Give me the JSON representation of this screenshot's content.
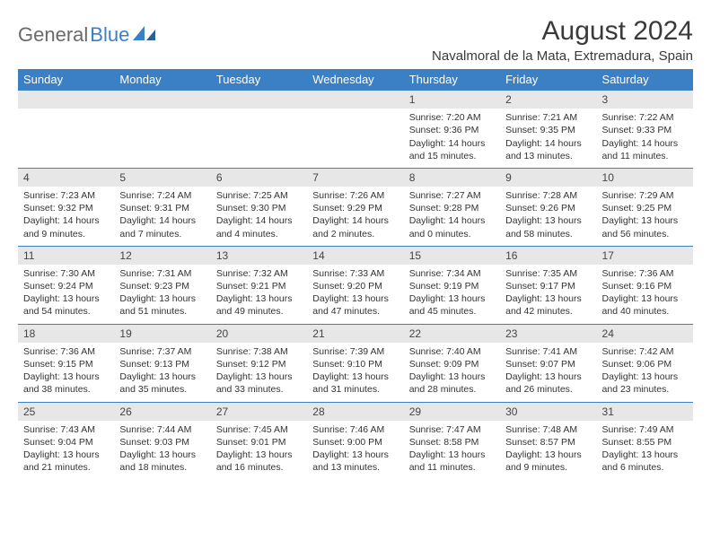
{
  "logo": {
    "text1": "General",
    "text2": "Blue"
  },
  "title": "August 2024",
  "location": "Navalmoral de la Mata, Extremadura, Spain",
  "colors": {
    "header_bg": "#3b7fc4",
    "header_text": "#ffffff",
    "daynum_bg": "#e7e7e7",
    "border_top": "#3b7fc4",
    "text": "#333333",
    "logo_gray": "#6a6a6a",
    "logo_blue": "#3b7fc4"
  },
  "day_headers": [
    "Sunday",
    "Monday",
    "Tuesday",
    "Wednesday",
    "Thursday",
    "Friday",
    "Saturday"
  ],
  "weeks": [
    [
      {
        "num": "",
        "lines": []
      },
      {
        "num": "",
        "lines": []
      },
      {
        "num": "",
        "lines": []
      },
      {
        "num": "",
        "lines": []
      },
      {
        "num": "1",
        "lines": [
          "Sunrise: 7:20 AM",
          "Sunset: 9:36 PM",
          "Daylight: 14 hours",
          "and 15 minutes."
        ]
      },
      {
        "num": "2",
        "lines": [
          "Sunrise: 7:21 AM",
          "Sunset: 9:35 PM",
          "Daylight: 14 hours",
          "and 13 minutes."
        ]
      },
      {
        "num": "3",
        "lines": [
          "Sunrise: 7:22 AM",
          "Sunset: 9:33 PM",
          "Daylight: 14 hours",
          "and 11 minutes."
        ]
      }
    ],
    [
      {
        "num": "4",
        "lines": [
          "Sunrise: 7:23 AM",
          "Sunset: 9:32 PM",
          "Daylight: 14 hours",
          "and 9 minutes."
        ]
      },
      {
        "num": "5",
        "lines": [
          "Sunrise: 7:24 AM",
          "Sunset: 9:31 PM",
          "Daylight: 14 hours",
          "and 7 minutes."
        ]
      },
      {
        "num": "6",
        "lines": [
          "Sunrise: 7:25 AM",
          "Sunset: 9:30 PM",
          "Daylight: 14 hours",
          "and 4 minutes."
        ]
      },
      {
        "num": "7",
        "lines": [
          "Sunrise: 7:26 AM",
          "Sunset: 9:29 PM",
          "Daylight: 14 hours",
          "and 2 minutes."
        ]
      },
      {
        "num": "8",
        "lines": [
          "Sunrise: 7:27 AM",
          "Sunset: 9:28 PM",
          "Daylight: 14 hours",
          "and 0 minutes."
        ]
      },
      {
        "num": "9",
        "lines": [
          "Sunrise: 7:28 AM",
          "Sunset: 9:26 PM",
          "Daylight: 13 hours",
          "and 58 minutes."
        ]
      },
      {
        "num": "10",
        "lines": [
          "Sunrise: 7:29 AM",
          "Sunset: 9:25 PM",
          "Daylight: 13 hours",
          "and 56 minutes."
        ]
      }
    ],
    [
      {
        "num": "11",
        "lines": [
          "Sunrise: 7:30 AM",
          "Sunset: 9:24 PM",
          "Daylight: 13 hours",
          "and 54 minutes."
        ]
      },
      {
        "num": "12",
        "lines": [
          "Sunrise: 7:31 AM",
          "Sunset: 9:23 PM",
          "Daylight: 13 hours",
          "and 51 minutes."
        ]
      },
      {
        "num": "13",
        "lines": [
          "Sunrise: 7:32 AM",
          "Sunset: 9:21 PM",
          "Daylight: 13 hours",
          "and 49 minutes."
        ]
      },
      {
        "num": "14",
        "lines": [
          "Sunrise: 7:33 AM",
          "Sunset: 9:20 PM",
          "Daylight: 13 hours",
          "and 47 minutes."
        ]
      },
      {
        "num": "15",
        "lines": [
          "Sunrise: 7:34 AM",
          "Sunset: 9:19 PM",
          "Daylight: 13 hours",
          "and 45 minutes."
        ]
      },
      {
        "num": "16",
        "lines": [
          "Sunrise: 7:35 AM",
          "Sunset: 9:17 PM",
          "Daylight: 13 hours",
          "and 42 minutes."
        ]
      },
      {
        "num": "17",
        "lines": [
          "Sunrise: 7:36 AM",
          "Sunset: 9:16 PM",
          "Daylight: 13 hours",
          "and 40 minutes."
        ]
      }
    ],
    [
      {
        "num": "18",
        "lines": [
          "Sunrise: 7:36 AM",
          "Sunset: 9:15 PM",
          "Daylight: 13 hours",
          "and 38 minutes."
        ]
      },
      {
        "num": "19",
        "lines": [
          "Sunrise: 7:37 AM",
          "Sunset: 9:13 PM",
          "Daylight: 13 hours",
          "and 35 minutes."
        ]
      },
      {
        "num": "20",
        "lines": [
          "Sunrise: 7:38 AM",
          "Sunset: 9:12 PM",
          "Daylight: 13 hours",
          "and 33 minutes."
        ]
      },
      {
        "num": "21",
        "lines": [
          "Sunrise: 7:39 AM",
          "Sunset: 9:10 PM",
          "Daylight: 13 hours",
          "and 31 minutes."
        ]
      },
      {
        "num": "22",
        "lines": [
          "Sunrise: 7:40 AM",
          "Sunset: 9:09 PM",
          "Daylight: 13 hours",
          "and 28 minutes."
        ]
      },
      {
        "num": "23",
        "lines": [
          "Sunrise: 7:41 AM",
          "Sunset: 9:07 PM",
          "Daylight: 13 hours",
          "and 26 minutes."
        ]
      },
      {
        "num": "24",
        "lines": [
          "Sunrise: 7:42 AM",
          "Sunset: 9:06 PM",
          "Daylight: 13 hours",
          "and 23 minutes."
        ]
      }
    ],
    [
      {
        "num": "25",
        "lines": [
          "Sunrise: 7:43 AM",
          "Sunset: 9:04 PM",
          "Daylight: 13 hours",
          "and 21 minutes."
        ]
      },
      {
        "num": "26",
        "lines": [
          "Sunrise: 7:44 AM",
          "Sunset: 9:03 PM",
          "Daylight: 13 hours",
          "and 18 minutes."
        ]
      },
      {
        "num": "27",
        "lines": [
          "Sunrise: 7:45 AM",
          "Sunset: 9:01 PM",
          "Daylight: 13 hours",
          "and 16 minutes."
        ]
      },
      {
        "num": "28",
        "lines": [
          "Sunrise: 7:46 AM",
          "Sunset: 9:00 PM",
          "Daylight: 13 hours",
          "and 13 minutes."
        ]
      },
      {
        "num": "29",
        "lines": [
          "Sunrise: 7:47 AM",
          "Sunset: 8:58 PM",
          "Daylight: 13 hours",
          "and 11 minutes."
        ]
      },
      {
        "num": "30",
        "lines": [
          "Sunrise: 7:48 AM",
          "Sunset: 8:57 PM",
          "Daylight: 13 hours",
          "and 9 minutes."
        ]
      },
      {
        "num": "31",
        "lines": [
          "Sunrise: 7:49 AM",
          "Sunset: 8:55 PM",
          "Daylight: 13 hours",
          "and 6 minutes."
        ]
      }
    ]
  ]
}
